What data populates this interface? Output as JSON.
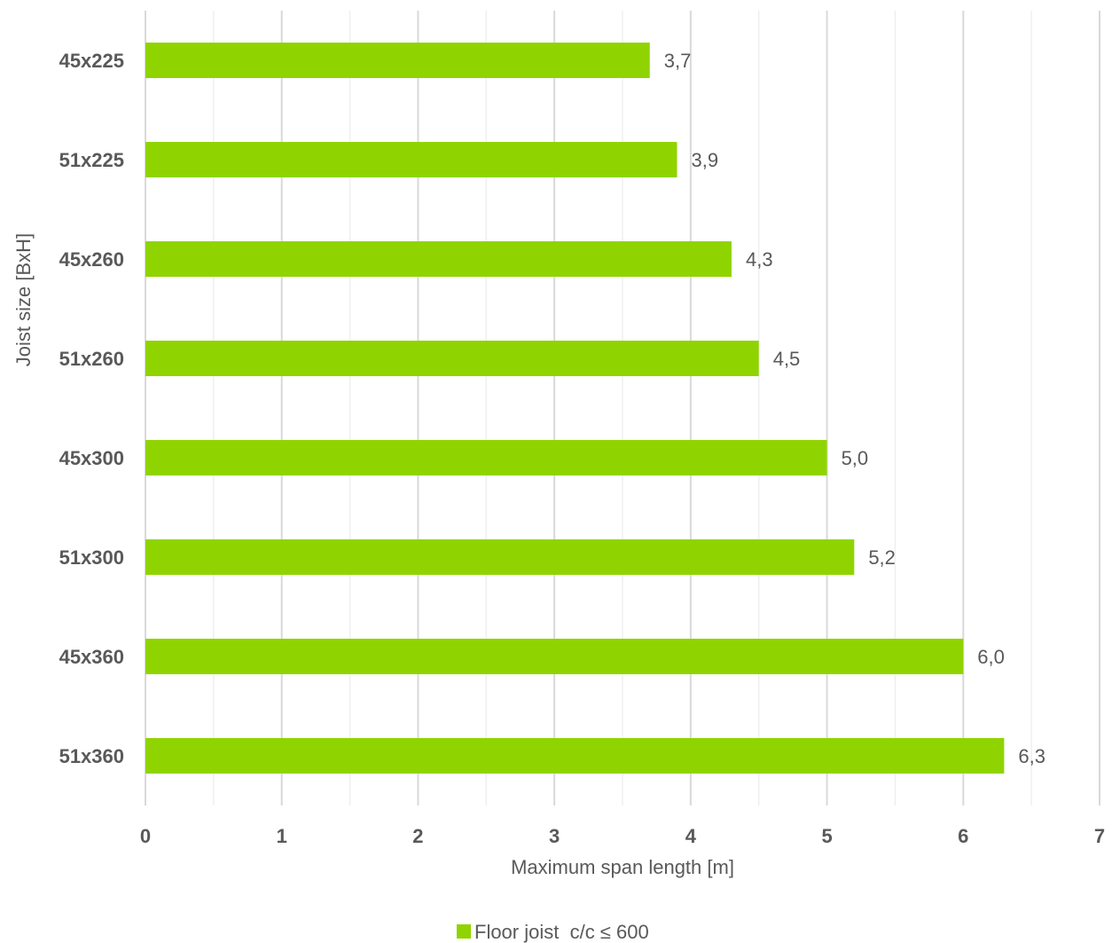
{
  "chart_data": {
    "type": "bar",
    "orientation": "horizontal",
    "categories": [
      "45x225",
      "51x225",
      "45x260",
      "51x260",
      "45x300",
      "51x300",
      "45x360",
      "51x360"
    ],
    "series": [
      {
        "name": "Floor joist  c/c ≤ 600",
        "values": [
          3.7,
          3.9,
          4.3,
          4.5,
          5.0,
          5.2,
          6.0,
          6.3
        ],
        "data_labels": [
          "3,7",
          "3,9",
          "4,3",
          "4,5",
          "5,0",
          "5,2",
          "6,0",
          "6,3"
        ],
        "color": "#8fd400"
      }
    ],
    "xlabel": "Maximum span length [m]",
    "ylabel": "Joist size [BxH]",
    "xlim": [
      0,
      7
    ],
    "xticks": [
      0,
      1,
      2,
      3,
      4,
      5,
      6,
      7
    ],
    "grid": true,
    "legend_position": "bottom"
  }
}
